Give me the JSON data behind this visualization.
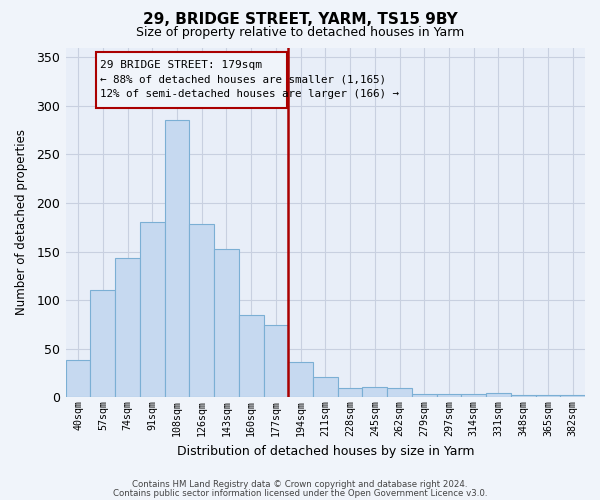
{
  "title": "29, BRIDGE STREET, YARM, TS15 9BY",
  "subtitle": "Size of property relative to detached houses in Yarm",
  "xlabel": "Distribution of detached houses by size in Yarm",
  "ylabel": "Number of detached properties",
  "categories": [
    "40sqm",
    "57sqm",
    "74sqm",
    "91sqm",
    "108sqm",
    "126sqm",
    "143sqm",
    "160sqm",
    "177sqm",
    "194sqm",
    "211sqm",
    "228sqm",
    "245sqm",
    "262sqm",
    "279sqm",
    "297sqm",
    "314sqm",
    "331sqm",
    "348sqm",
    "365sqm",
    "382sqm"
  ],
  "values": [
    38,
    110,
    143,
    180,
    285,
    178,
    153,
    85,
    74,
    36,
    21,
    10,
    11,
    10,
    4,
    4,
    4,
    5,
    2,
    2,
    2
  ],
  "bar_color": "#c6d9f0",
  "bar_edge_color": "#7bafd4",
  "reference_line_index": 8,
  "reference_label": "29 BRIDGE STREET: 179sqm",
  "annotation_left": "← 88% of detached houses are smaller (1,165)",
  "annotation_right": "12% of semi-detached houses are larger (166) →",
  "ylim": [
    0,
    360
  ],
  "yticks": [
    0,
    50,
    100,
    150,
    200,
    250,
    300,
    350
  ],
  "footnote1": "Contains HM Land Registry data © Crown copyright and database right 2024.",
  "footnote2": "Contains public sector information licensed under the Open Government Licence v3.0.",
  "background_color": "#f0f4fa",
  "plot_bg_color": "#e8eef8",
  "grid_color": "#c8d0e0",
  "box_color": "#aa0000",
  "ref_line_color": "#aa0000"
}
